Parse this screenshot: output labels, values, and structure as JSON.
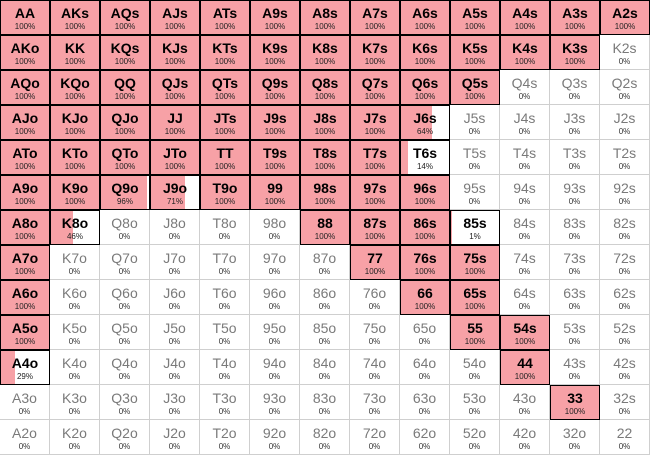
{
  "colors": {
    "played_fill": "#f7a1a6",
    "border_played": "#000000",
    "grid_line": "#cfcfcf"
  },
  "rows": [
    [
      {
        "hand": "AA",
        "freq": 100
      },
      {
        "hand": "AKs",
        "freq": 100
      },
      {
        "hand": "AQs",
        "freq": 100
      },
      {
        "hand": "AJs",
        "freq": 100
      },
      {
        "hand": "ATs",
        "freq": 100
      },
      {
        "hand": "A9s",
        "freq": 100
      },
      {
        "hand": "A8s",
        "freq": 100
      },
      {
        "hand": "A7s",
        "freq": 100
      },
      {
        "hand": "A6s",
        "freq": 100
      },
      {
        "hand": "A5s",
        "freq": 100
      },
      {
        "hand": "A4s",
        "freq": 100
      },
      {
        "hand": "A3s",
        "freq": 100
      },
      {
        "hand": "A2s",
        "freq": 100
      }
    ],
    [
      {
        "hand": "AKo",
        "freq": 100
      },
      {
        "hand": "KK",
        "freq": 100
      },
      {
        "hand": "KQs",
        "freq": 100
      },
      {
        "hand": "KJs",
        "freq": 100
      },
      {
        "hand": "KTs",
        "freq": 100
      },
      {
        "hand": "K9s",
        "freq": 100
      },
      {
        "hand": "K8s",
        "freq": 100
      },
      {
        "hand": "K7s",
        "freq": 100
      },
      {
        "hand": "K6s",
        "freq": 100
      },
      {
        "hand": "K5s",
        "freq": 100
      },
      {
        "hand": "K4s",
        "freq": 100
      },
      {
        "hand": "K3s",
        "freq": 100
      },
      {
        "hand": "K2s",
        "freq": 0
      }
    ],
    [
      {
        "hand": "AQo",
        "freq": 100
      },
      {
        "hand": "KQo",
        "freq": 100
      },
      {
        "hand": "QQ",
        "freq": 100
      },
      {
        "hand": "QJs",
        "freq": 100
      },
      {
        "hand": "QTs",
        "freq": 100
      },
      {
        "hand": "Q9s",
        "freq": 100
      },
      {
        "hand": "Q8s",
        "freq": 100
      },
      {
        "hand": "Q7s",
        "freq": 100
      },
      {
        "hand": "Q6s",
        "freq": 100
      },
      {
        "hand": "Q5s",
        "freq": 100
      },
      {
        "hand": "Q4s",
        "freq": 0
      },
      {
        "hand": "Q3s",
        "freq": 0
      },
      {
        "hand": "Q2s",
        "freq": 0
      }
    ],
    [
      {
        "hand": "AJo",
        "freq": 100
      },
      {
        "hand": "KJo",
        "freq": 100
      },
      {
        "hand": "QJo",
        "freq": 100
      },
      {
        "hand": "JJ",
        "freq": 100
      },
      {
        "hand": "JTs",
        "freq": 100
      },
      {
        "hand": "J9s",
        "freq": 100
      },
      {
        "hand": "J8s",
        "freq": 100
      },
      {
        "hand": "J7s",
        "freq": 100
      },
      {
        "hand": "J6s",
        "freq": 64
      },
      {
        "hand": "J5s",
        "freq": 0
      },
      {
        "hand": "J4s",
        "freq": 0
      },
      {
        "hand": "J3s",
        "freq": 0
      },
      {
        "hand": "J2s",
        "freq": 0
      }
    ],
    [
      {
        "hand": "ATo",
        "freq": 100
      },
      {
        "hand": "KTo",
        "freq": 100
      },
      {
        "hand": "QTo",
        "freq": 100
      },
      {
        "hand": "JTo",
        "freq": 100
      },
      {
        "hand": "TT",
        "freq": 100
      },
      {
        "hand": "T9s",
        "freq": 100
      },
      {
        "hand": "T8s",
        "freq": 100
      },
      {
        "hand": "T7s",
        "freq": 100
      },
      {
        "hand": "T6s",
        "freq": 14
      },
      {
        "hand": "T5s",
        "freq": 0
      },
      {
        "hand": "T4s",
        "freq": 0
      },
      {
        "hand": "T3s",
        "freq": 0
      },
      {
        "hand": "T2s",
        "freq": 0
      }
    ],
    [
      {
        "hand": "A9o",
        "freq": 100
      },
      {
        "hand": "K9o",
        "freq": 100
      },
      {
        "hand": "Q9o",
        "freq": 96
      },
      {
        "hand": "J9o",
        "freq": 71
      },
      {
        "hand": "T9o",
        "freq": 100
      },
      {
        "hand": "99",
        "freq": 100
      },
      {
        "hand": "98s",
        "freq": 100
      },
      {
        "hand": "97s",
        "freq": 100
      },
      {
        "hand": "96s",
        "freq": 100
      },
      {
        "hand": "95s",
        "freq": 0
      },
      {
        "hand": "94s",
        "freq": 0
      },
      {
        "hand": "93s",
        "freq": 0
      },
      {
        "hand": "92s",
        "freq": 0
      }
    ],
    [
      {
        "hand": "A8o",
        "freq": 100
      },
      {
        "hand": "K8o",
        "freq": 46
      },
      {
        "hand": "Q8o",
        "freq": 0
      },
      {
        "hand": "J8o",
        "freq": 0
      },
      {
        "hand": "T8o",
        "freq": 0
      },
      {
        "hand": "98o",
        "freq": 0
      },
      {
        "hand": "88",
        "freq": 100
      },
      {
        "hand": "87s",
        "freq": 100
      },
      {
        "hand": "86s",
        "freq": 100
      },
      {
        "hand": "85s",
        "freq": 1
      },
      {
        "hand": "84s",
        "freq": 0
      },
      {
        "hand": "83s",
        "freq": 0
      },
      {
        "hand": "82s",
        "freq": 0
      }
    ],
    [
      {
        "hand": "A7o",
        "freq": 100
      },
      {
        "hand": "K7o",
        "freq": 0
      },
      {
        "hand": "Q7o",
        "freq": 0
      },
      {
        "hand": "J7o",
        "freq": 0
      },
      {
        "hand": "T7o",
        "freq": 0
      },
      {
        "hand": "97o",
        "freq": 0
      },
      {
        "hand": "87o",
        "freq": 0
      },
      {
        "hand": "77",
        "freq": 100
      },
      {
        "hand": "76s",
        "freq": 100
      },
      {
        "hand": "75s",
        "freq": 100
      },
      {
        "hand": "74s",
        "freq": 0
      },
      {
        "hand": "73s",
        "freq": 0
      },
      {
        "hand": "72s",
        "freq": 0
      }
    ],
    [
      {
        "hand": "A6o",
        "freq": 100
      },
      {
        "hand": "K6o",
        "freq": 0
      },
      {
        "hand": "Q6o",
        "freq": 0
      },
      {
        "hand": "J6o",
        "freq": 0
      },
      {
        "hand": "T6o",
        "freq": 0
      },
      {
        "hand": "96o",
        "freq": 0
      },
      {
        "hand": "86o",
        "freq": 0
      },
      {
        "hand": "76o",
        "freq": 0
      },
      {
        "hand": "66",
        "freq": 100
      },
      {
        "hand": "65s",
        "freq": 100
      },
      {
        "hand": "64s",
        "freq": 0
      },
      {
        "hand": "63s",
        "freq": 0
      },
      {
        "hand": "62s",
        "freq": 0
      }
    ],
    [
      {
        "hand": "A5o",
        "freq": 100
      },
      {
        "hand": "K5o",
        "freq": 0
      },
      {
        "hand": "Q5o",
        "freq": 0
      },
      {
        "hand": "J5o",
        "freq": 0
      },
      {
        "hand": "T5o",
        "freq": 0
      },
      {
        "hand": "95o",
        "freq": 0
      },
      {
        "hand": "85o",
        "freq": 0
      },
      {
        "hand": "75o",
        "freq": 0
      },
      {
        "hand": "65o",
        "freq": 0
      },
      {
        "hand": "55",
        "freq": 100
      },
      {
        "hand": "54s",
        "freq": 100
      },
      {
        "hand": "53s",
        "freq": 0
      },
      {
        "hand": "52s",
        "freq": 0
      }
    ],
    [
      {
        "hand": "A4o",
        "freq": 29
      },
      {
        "hand": "K4o",
        "freq": 0
      },
      {
        "hand": "Q4o",
        "freq": 0
      },
      {
        "hand": "J4o",
        "freq": 0
      },
      {
        "hand": "T4o",
        "freq": 0
      },
      {
        "hand": "94o",
        "freq": 0
      },
      {
        "hand": "84o",
        "freq": 0
      },
      {
        "hand": "74o",
        "freq": 0
      },
      {
        "hand": "64o",
        "freq": 0
      },
      {
        "hand": "54o",
        "freq": 0
      },
      {
        "hand": "44",
        "freq": 100
      },
      {
        "hand": "43s",
        "freq": 0
      },
      {
        "hand": "42s",
        "freq": 0
      }
    ],
    [
      {
        "hand": "A3o",
        "freq": 0
      },
      {
        "hand": "K3o",
        "freq": 0
      },
      {
        "hand": "Q3o",
        "freq": 0
      },
      {
        "hand": "J3o",
        "freq": 0
      },
      {
        "hand": "T3o",
        "freq": 0
      },
      {
        "hand": "93o",
        "freq": 0
      },
      {
        "hand": "83o",
        "freq": 0
      },
      {
        "hand": "73o",
        "freq": 0
      },
      {
        "hand": "63o",
        "freq": 0
      },
      {
        "hand": "53o",
        "freq": 0
      },
      {
        "hand": "43o",
        "freq": 0
      },
      {
        "hand": "33",
        "freq": 100
      },
      {
        "hand": "32s",
        "freq": 0
      }
    ],
    [
      {
        "hand": "A2o",
        "freq": 0
      },
      {
        "hand": "K2o",
        "freq": 0
      },
      {
        "hand": "Q2o",
        "freq": 0
      },
      {
        "hand": "J2o",
        "freq": 0
      },
      {
        "hand": "T2o",
        "freq": 0
      },
      {
        "hand": "92o",
        "freq": 0
      },
      {
        "hand": "82o",
        "freq": 0
      },
      {
        "hand": "72o",
        "freq": 0
      },
      {
        "hand": "62o",
        "freq": 0
      },
      {
        "hand": "52o",
        "freq": 0
      },
      {
        "hand": "42o",
        "freq": 0
      },
      {
        "hand": "32o",
        "freq": 0
      },
      {
        "hand": "22",
        "freq": 0
      }
    ]
  ]
}
